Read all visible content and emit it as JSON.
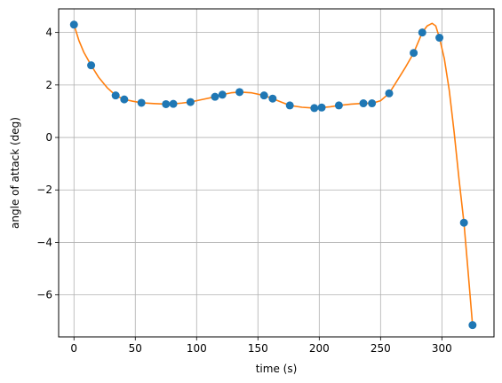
{
  "chart_data": {
    "type": "scatter",
    "xlabel": "time (s)",
    "ylabel": "angle of attack (deg)",
    "xlim": [
      -12.5,
      342.5
    ],
    "ylim": [
      -7.6,
      4.9
    ],
    "xticks": [
      0,
      50,
      100,
      150,
      200,
      250,
      300
    ],
    "yticks": [
      -6,
      -4,
      -2,
      0,
      2,
      4
    ],
    "xtick_labels": [
      "0",
      "50",
      "100",
      "150",
      "200",
      "250",
      "300"
    ],
    "ytick_labels": [
      "−6",
      "−4",
      "−2",
      "0",
      "2",
      "4"
    ],
    "grid": true,
    "series": [
      {
        "kind": "scatter",
        "color": "#1f77b4",
        "x": [
          0,
          14,
          34,
          41,
          55,
          75,
          81,
          95,
          115,
          121,
          135,
          155,
          162,
          176,
          196,
          202,
          216,
          236,
          243,
          257,
          277,
          284,
          298,
          318,
          325
        ],
        "y": [
          4.3,
          2.75,
          1.6,
          1.45,
          1.32,
          1.27,
          1.28,
          1.35,
          1.55,
          1.63,
          1.73,
          1.6,
          1.48,
          1.22,
          1.12,
          1.14,
          1.22,
          1.3,
          1.3,
          1.68,
          3.22,
          4.0,
          3.8,
          -3.25,
          -7.15
        ]
      },
      {
        "kind": "line",
        "color": "#ff7f0e",
        "x": [
          0,
          4,
          8,
          14,
          20,
          27,
          34,
          41,
          48,
          55,
          65,
          75,
          81,
          88,
          95,
          105,
          115,
          121,
          128,
          135,
          145,
          155,
          162,
          169,
          176,
          186,
          196,
          202,
          209,
          216,
          226,
          236,
          243,
          250,
          257,
          264,
          270,
          277,
          284,
          288,
          292,
          295,
          298,
          302,
          306,
          310,
          314,
          318,
          321,
          325
        ],
        "y": [
          4.3,
          3.7,
          3.25,
          2.75,
          2.3,
          1.9,
          1.6,
          1.45,
          1.38,
          1.32,
          1.29,
          1.27,
          1.28,
          1.31,
          1.35,
          1.45,
          1.55,
          1.63,
          1.7,
          1.73,
          1.7,
          1.6,
          1.48,
          1.35,
          1.22,
          1.15,
          1.12,
          1.14,
          1.17,
          1.22,
          1.27,
          1.3,
          1.3,
          1.4,
          1.68,
          2.2,
          2.65,
          3.22,
          4.0,
          4.25,
          4.35,
          4.25,
          3.8,
          3.0,
          1.8,
          0.2,
          -1.6,
          -3.25,
          -4.9,
          -7.15
        ]
      }
    ]
  }
}
